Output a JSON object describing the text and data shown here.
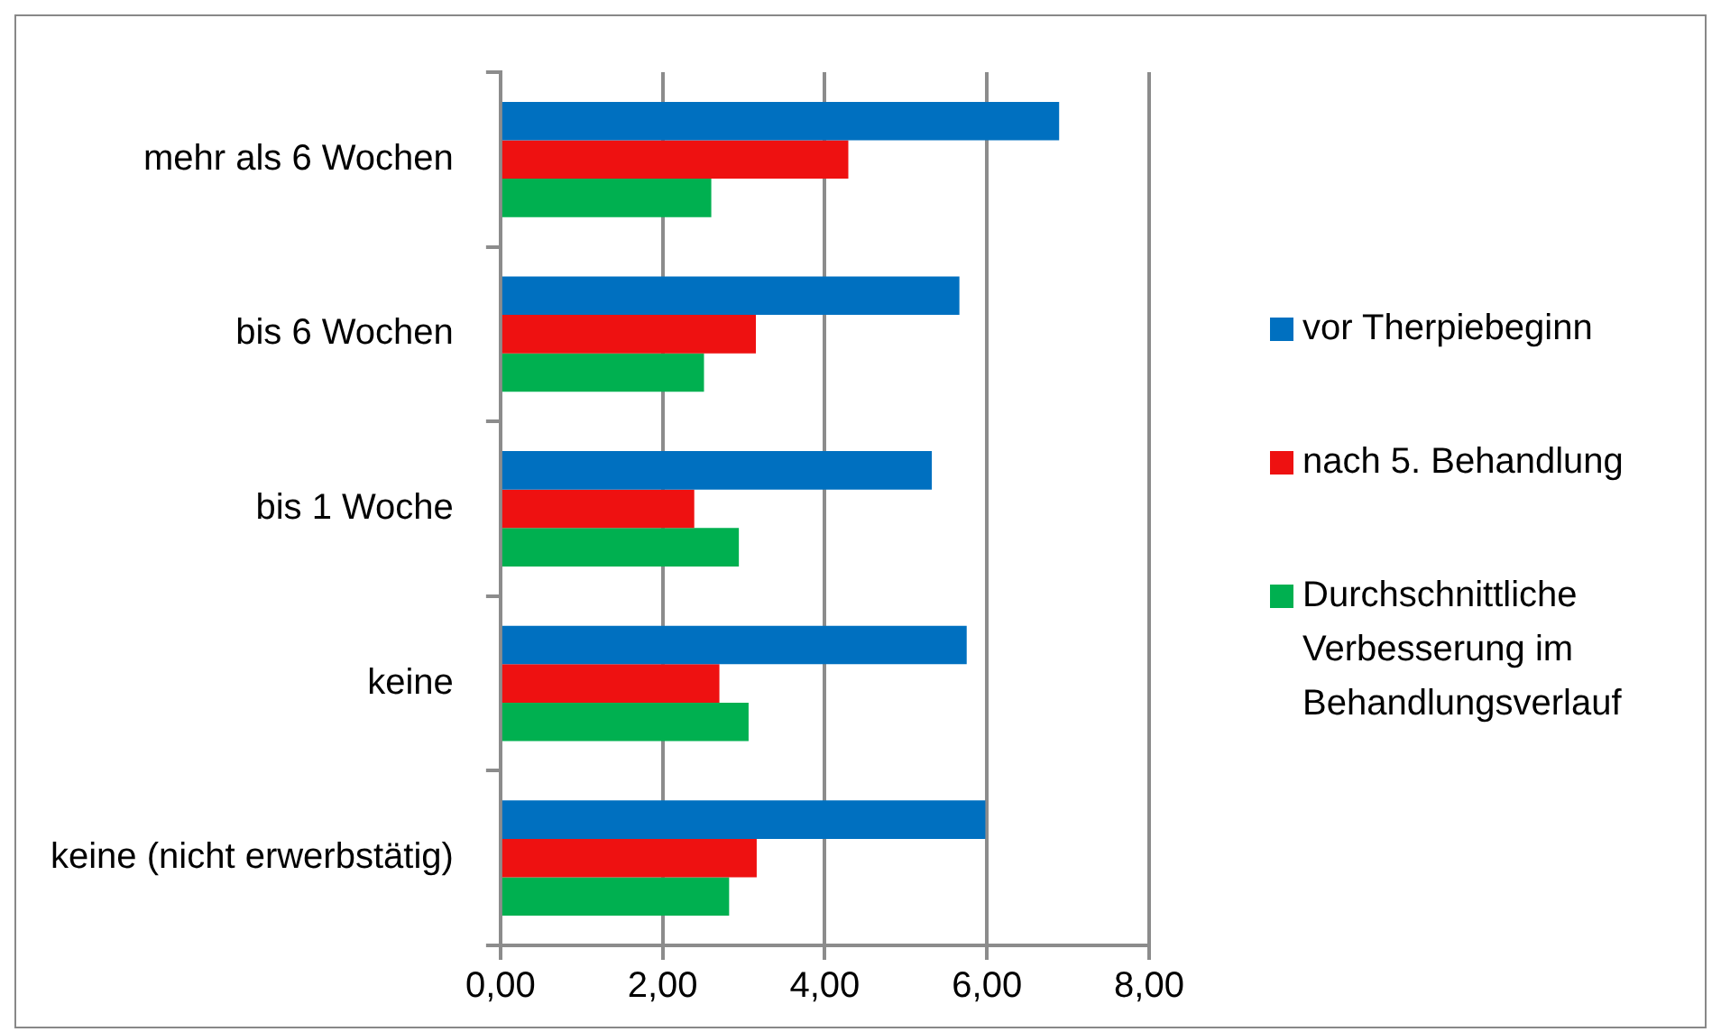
{
  "chart_data": {
    "type": "bar",
    "orientation": "horizontal",
    "categories": [
      "mehr als 6 Wochen",
      "bis 6 Wochen",
      "bis 1 Woche",
      "keine",
      "keine (nicht erwerbstätig)"
    ],
    "series": [
      {
        "name": "vor Therpiebeginn",
        "color": "#0070c0",
        "values": [
          6.89,
          5.66,
          5.32,
          5.75,
          5.98
        ]
      },
      {
        "name": "nach 5. Behandlung",
        "color": "#ee1111",
        "values": [
          4.29,
          3.15,
          2.39,
          2.7,
          3.16
        ]
      },
      {
        "name": "Durchschnittliche Verbesserung im Behandlungsverlauf",
        "color": "#00b050",
        "values": [
          2.6,
          2.51,
          2.94,
          3.06,
          2.82
        ]
      }
    ],
    "xlim": [
      0,
      8
    ],
    "xticks": [
      {
        "value": 0,
        "label": "0,00"
      },
      {
        "value": 2,
        "label": "2,00"
      },
      {
        "value": 4,
        "label": "4,00"
      },
      {
        "value": 6,
        "label": "6,00"
      },
      {
        "value": 8,
        "label": "8,00"
      }
    ],
    "grid": "x",
    "legend": "right"
  }
}
